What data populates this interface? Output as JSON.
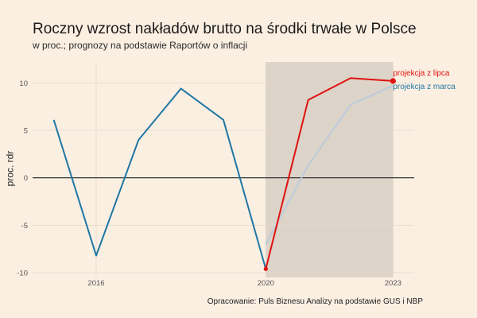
{
  "title": "Roczny wzrost nakładów brutto na środki trwałe w Polsce",
  "subtitle": "w proc.; prognozy na podstawie Raportów o inflacji",
  "caption": "Opracowanie: Puls Biznesu Analizy na podstawie GUS i NBP",
  "colors": {
    "background": "#fbefe2",
    "history": "#1f77a4",
    "july": "#e0120f",
    "march": "#b8cadd",
    "shade": "#dcd3c9"
  },
  "chart_data": {
    "type": "line",
    "title": "Roczny wzrost nakładów brutto na środki trwałe w Polsce",
    "subtitle": "w proc.; prognozy na podstawie Raportów o inflacji",
    "ylabel": "proc. rdr",
    "xlabel": "",
    "xlim": [
      2014.5,
      2023.5
    ],
    "ylim": [
      -10.5,
      12.2
    ],
    "x_ticks": [
      2016,
      2020,
      2023
    ],
    "y_ticks": [
      -10,
      -5,
      0,
      5,
      10
    ],
    "shaded_region": [
      2020,
      2023
    ],
    "grid": true,
    "series": [
      {
        "name": "",
        "x": [
          2015,
          2016,
          2017,
          2018,
          2019,
          2020
        ],
        "values": [
          6.1,
          -8.2,
          4.0,
          9.4,
          6.1,
          -9.6
        ]
      },
      {
        "name": "projekcja z lipca",
        "x": [
          2020,
          2021,
          2022,
          2023
        ],
        "values": [
          -9.6,
          8.2,
          10.5,
          10.2
        ]
      },
      {
        "name": "projekcja z marca",
        "x": [
          2020,
          2021,
          2022,
          2023
        ],
        "values": [
          -7.0,
          1.3,
          7.7,
          9.7
        ]
      }
    ]
  }
}
